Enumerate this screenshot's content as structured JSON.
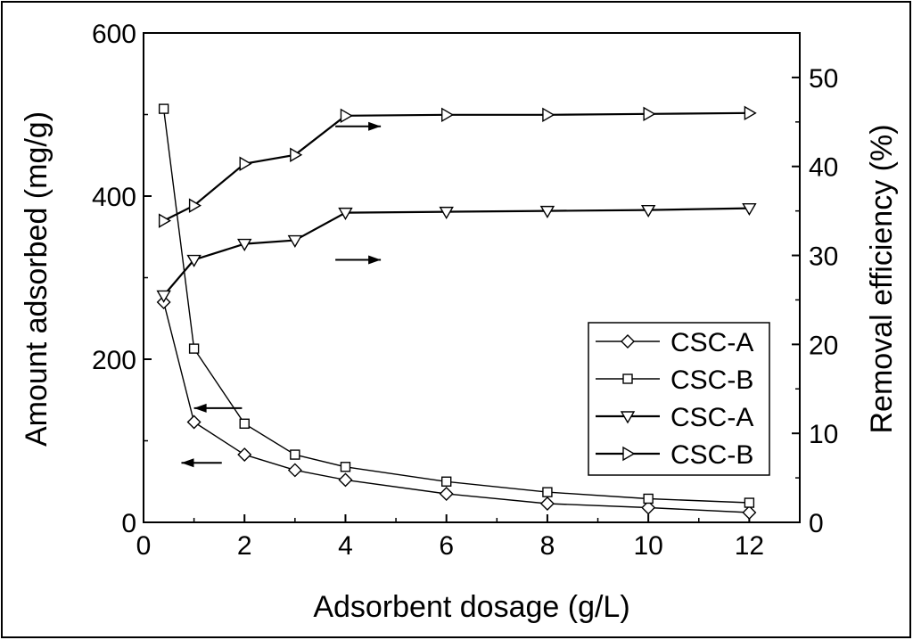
{
  "chart_data": {
    "type": "line",
    "xlabel": "Adsorbent dosage (g/L)",
    "ylabel_left": "Amount adsorbed (mg/g)",
    "ylabel_right": "Removal efficiency (%)",
    "xlim": [
      0,
      13
    ],
    "ylim_left": [
      0,
      600
    ],
    "ylim_right": [
      0,
      55
    ],
    "x_ticks": [
      0,
      2,
      4,
      6,
      8,
      10,
      12
    ],
    "y_ticks_left": [
      0,
      200,
      400,
      600
    ],
    "y_ticks_right": [
      0,
      10,
      20,
      30,
      40,
      50
    ],
    "grid": false,
    "legend_position": "lower-right",
    "series": [
      {
        "name": "CSC-A",
        "axis": "left",
        "marker": "diamond",
        "x": [
          0.4,
          1,
          2,
          3,
          4,
          6,
          8,
          10,
          12
        ],
        "y": [
          270,
          123,
          83,
          64,
          52,
          35,
          23,
          18,
          12
        ]
      },
      {
        "name": "CSC-B",
        "axis": "left",
        "marker": "square",
        "x": [
          0.4,
          1,
          2,
          3,
          4,
          6,
          8,
          10,
          12
        ],
        "y": [
          507,
          213,
          121,
          83,
          68,
          50,
          37,
          29,
          24
        ]
      },
      {
        "name": "CSC-A",
        "axis": "right",
        "marker": "triangle-down",
        "x": [
          0.4,
          1,
          2,
          3,
          4,
          6,
          8,
          10,
          12
        ],
        "y": [
          25.5,
          29.5,
          31.3,
          31.7,
          34.8,
          34.9,
          35.0,
          35.1,
          35.3
        ]
      },
      {
        "name": "CSC-B",
        "axis": "right",
        "marker": "triangle-right",
        "x": [
          0.4,
          1,
          2,
          3,
          4,
          6,
          8,
          10,
          12
        ],
        "y": [
          33.9,
          35.6,
          40.3,
          41.3,
          45.7,
          45.8,
          45.8,
          45.9,
          46.0
        ]
      }
    ],
    "annotations": [
      {
        "type": "arrow",
        "direction": "left",
        "axis": "left",
        "x1": 1.95,
        "x2": 1.0,
        "y": 140
      },
      {
        "type": "arrow",
        "direction": "left",
        "axis": "left",
        "x1": 1.55,
        "x2": 0.75,
        "y": 73
      },
      {
        "type": "arrow",
        "direction": "right",
        "axis": "right",
        "x1": 3.8,
        "x2": 4.7,
        "y": 44.5
      },
      {
        "type": "arrow",
        "direction": "right",
        "axis": "right",
        "x1": 3.8,
        "x2": 4.7,
        "y": 29.5
      }
    ]
  }
}
